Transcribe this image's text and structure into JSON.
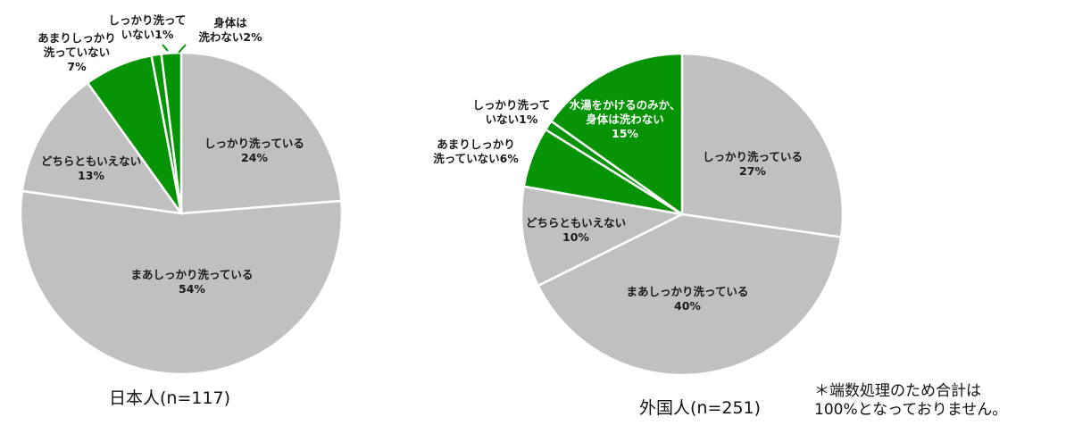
{
  "chart_data": [
    {
      "type": "pie",
      "title": "日本人(n=117)",
      "slices": [
        {
          "label": [
            "しっかり洗っている",
            "24%"
          ],
          "value": 24,
          "color": "#c0c0c0"
        },
        {
          "label": [
            "まあしっかり洗っている",
            "54%"
          ],
          "value": 54,
          "color": "#c0c0c0"
        },
        {
          "label": [
            "どちらともいえない",
            "13%"
          ],
          "value": 13,
          "color": "#c0c0c0"
        },
        {
          "label": [
            "あまりしっかり",
            "洗っていない",
            "7%"
          ],
          "value": 7,
          "color": "#069306"
        },
        {
          "label": [
            "しっかり洗って",
            "いない1%"
          ],
          "value": 1,
          "color": "#069306"
        },
        {
          "label": [
            "身体は",
            "洗わない2%"
          ],
          "value": 2,
          "color": "#069306"
        }
      ]
    },
    {
      "type": "pie",
      "title": "外国人(n=251)",
      "slices": [
        {
          "label": [
            "しっかり洗っている",
            "27%"
          ],
          "value": 27,
          "color": "#c0c0c0"
        },
        {
          "label": [
            "まあしっかり洗っている",
            "40%"
          ],
          "value": 40,
          "color": "#c0c0c0"
        },
        {
          "label": [
            "どちらともいえない",
            "10%"
          ],
          "value": 10,
          "color": "#c0c0c0"
        },
        {
          "label": [
            "あまりしっかり",
            "洗っていない6%"
          ],
          "value": 6,
          "color": "#069306"
        },
        {
          "label": [
            "しっかり洗って",
            "いない1%"
          ],
          "value": 1,
          "color": "#069306"
        },
        {
          "label": [
            "水湯をかけるのみか、",
            "身体は洗わない",
            "15%"
          ],
          "value": 15,
          "color": "#069306"
        }
      ]
    }
  ],
  "footnote": {
    "line1": "＊端数処理のため合計は",
    "line2": "100%となっておりません。"
  }
}
